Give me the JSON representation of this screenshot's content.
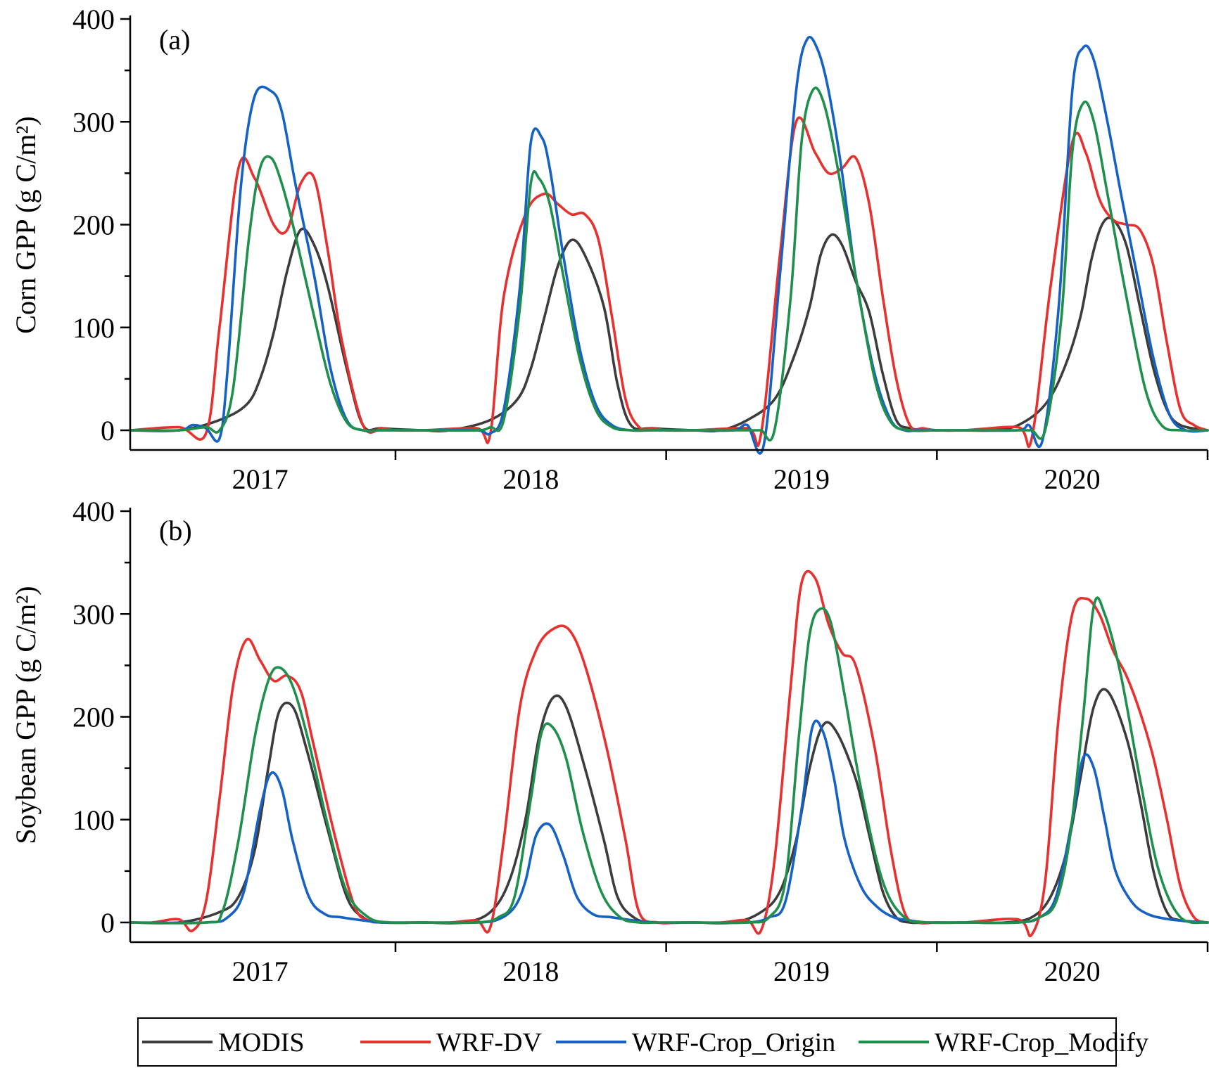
{
  "chart_data": [
    {
      "type": "line",
      "panel_label": "(a)",
      "ylabel": "Corn GPP (g C/m²)",
      "ylim": [
        0,
        400
      ],
      "yticks": [
        0,
        100,
        200,
        300,
        400
      ],
      "xlim": [
        2016.52,
        2020.5
      ],
      "year_labels": [
        "2017",
        "2018",
        "2019",
        "2020"
      ],
      "series": [
        {
          "name": "MODIS",
          "color": "#3c3c3c",
          "x": [
            2016.52,
            2016.7,
            2016.85,
            2016.95,
            2017.0,
            2017.05,
            2017.1,
            2017.15,
            2017.2,
            2017.25,
            2017.32,
            2017.38,
            2017.45,
            2017.6,
            2017.7,
            2017.85,
            2017.95,
            2018.0,
            2018.05,
            2018.1,
            2018.15,
            2018.2,
            2018.27,
            2018.32,
            2018.37,
            2018.45,
            2018.6,
            2018.7,
            2018.8,
            2018.9,
            2018.97,
            2019.03,
            2019.07,
            2019.11,
            2019.15,
            2019.2,
            2019.25,
            2019.3,
            2019.35,
            2019.4,
            2019.47,
            2019.6,
            2019.7,
            2019.8,
            2019.9,
            2019.97,
            2020.03,
            2020.07,
            2020.11,
            2020.15,
            2020.2,
            2020.25,
            2020.3,
            2020.35,
            2020.4,
            2020.5
          ],
          "values": [
            0,
            0,
            10,
            25,
            50,
            95,
            155,
            195,
            180,
            140,
            60,
            5,
            2,
            0,
            0,
            10,
            30,
            60,
            110,
            160,
            185,
            170,
            120,
            45,
            5,
            2,
            0,
            0,
            10,
            30,
            70,
            120,
            170,
            190,
            180,
            145,
            115,
            55,
            10,
            2,
            0,
            0,
            0,
            5,
            25,
            60,
            110,
            165,
            200,
            205,
            180,
            120,
            60,
            20,
            5,
            0
          ]
        },
        {
          "name": "WRF-DV",
          "color": "#e8302f",
          "x": [
            2016.52,
            2016.7,
            2016.8,
            2016.85,
            2016.92,
            2016.98,
            2017.05,
            2017.1,
            2017.15,
            2017.2,
            2017.25,
            2017.3,
            2017.38,
            2017.45,
            2017.5,
            2017.6,
            2017.8,
            2017.85,
            2017.9,
            2017.98,
            2018.05,
            2018.1,
            2018.15,
            2018.2,
            2018.25,
            2018.3,
            2018.35,
            2018.4,
            2018.45,
            2018.5,
            2018.6,
            2018.8,
            2018.85,
            2018.92,
            2018.98,
            2019.05,
            2019.1,
            2019.15,
            2019.2,
            2019.25,
            2019.3,
            2019.35,
            2019.4,
            2019.45,
            2019.5,
            2019.6,
            2019.8,
            2019.85,
            2019.92,
            2020.0,
            2020.05,
            2020.1,
            2020.15,
            2020.2,
            2020.25,
            2020.3,
            2020.35,
            2020.4,
            2020.45,
            2020.5
          ],
          "values": [
            0,
            3,
            -3,
            100,
            255,
            245,
            200,
            195,
            240,
            245,
            175,
            90,
            5,
            2,
            0,
            0,
            2,
            -4,
            130,
            210,
            230,
            220,
            210,
            210,
            185,
            110,
            30,
            3,
            2,
            0,
            0,
            2,
            -4,
            170,
            300,
            270,
            250,
            255,
            265,
            220,
            130,
            50,
            5,
            2,
            0,
            0,
            3,
            -8,
            140,
            280,
            270,
            225,
            205,
            200,
            195,
            160,
            85,
            20,
            5,
            0
          ]
        },
        {
          "name": "WRF-Crop_Origin",
          "color": "#1662c4",
          "x": [
            2016.52,
            2016.7,
            2016.75,
            2016.8,
            2016.85,
            2016.88,
            2016.93,
            2016.98,
            2017.04,
            2017.08,
            2017.13,
            2017.2,
            2017.26,
            2017.32,
            2017.38,
            2017.45,
            2017.6,
            2017.8,
            2017.85,
            2017.9,
            2017.96,
            2018.0,
            2018.04,
            2018.07,
            2018.12,
            2018.18,
            2018.24,
            2018.3,
            2018.37,
            2018.45,
            2018.6,
            2018.75,
            2018.8,
            2018.86,
            2018.92,
            2018.98,
            2019.02,
            2019.06,
            2019.1,
            2019.15,
            2019.2,
            2019.27,
            2019.33,
            2019.38,
            2019.43,
            2019.5,
            2019.6,
            2019.8,
            2019.84,
            2019.89,
            2019.95,
            2020.0,
            2020.04,
            2020.08,
            2020.13,
            2020.18,
            2020.24,
            2020.3,
            2020.36,
            2020.42,
            2020.5
          ],
          "values": [
            0,
            0,
            5,
            2,
            -8,
            60,
            240,
            325,
            330,
            310,
            240,
            150,
            60,
            10,
            0,
            0,
            0,
            0,
            -3,
            20,
            140,
            280,
            285,
            255,
            170,
            80,
            25,
            5,
            0,
            0,
            0,
            0,
            5,
            -15,
            150,
            330,
            380,
            370,
            330,
            250,
            150,
            55,
            10,
            0,
            0,
            0,
            0,
            0,
            5,
            -10,
            120,
            330,
            372,
            360,
            300,
            230,
            150,
            70,
            15,
            0,
            0
          ]
        },
        {
          "name": "WRF-Crop_Modify",
          "color": "#1f8f4c",
          "x": [
            2016.52,
            2016.7,
            2016.8,
            2016.85,
            2016.9,
            2016.96,
            2017.0,
            2017.04,
            2017.08,
            2017.13,
            2017.2,
            2017.26,
            2017.32,
            2017.38,
            2017.45,
            2017.6,
            2017.8,
            2017.85,
            2017.9,
            2017.96,
            2018.0,
            2018.03,
            2018.07,
            2018.12,
            2018.18,
            2018.24,
            2018.3,
            2018.37,
            2018.45,
            2018.6,
            2018.8,
            2018.85,
            2018.9,
            2018.96,
            2019.0,
            2019.04,
            2019.08,
            2019.13,
            2019.2,
            2019.27,
            2019.33,
            2019.4,
            2019.5,
            2019.6,
            2019.8,
            2019.85,
            2019.9,
            2019.96,
            2020.0,
            2020.04,
            2020.08,
            2020.13,
            2020.2,
            2020.27,
            2020.33,
            2020.4,
            2020.5
          ],
          "values": [
            0,
            0,
            3,
            0,
            40,
            190,
            255,
            265,
            240,
            190,
            110,
            45,
            8,
            0,
            0,
            0,
            0,
            3,
            10,
            120,
            240,
            245,
            220,
            150,
            70,
            20,
            3,
            0,
            0,
            0,
            0,
            0,
            0,
            130,
            280,
            330,
            320,
            260,
            150,
            50,
            8,
            0,
            0,
            0,
            0,
            0,
            0,
            110,
            270,
            318,
            300,
            230,
            130,
            40,
            5,
            0,
            0
          ]
        }
      ]
    },
    {
      "type": "line",
      "panel_label": "(b)",
      "ylabel": "Soybean GPP (g C/m²)",
      "ylim": [
        0,
        400
      ],
      "yticks": [
        0,
        100,
        200,
        300,
        400
      ],
      "xlim": [
        2016.52,
        2020.5
      ],
      "year_labels": [
        "2017",
        "2018",
        "2019",
        "2020"
      ],
      "series": [
        {
          "name": "MODIS",
          "color": "#3c3c3c",
          "x": [
            2016.52,
            2016.7,
            2016.85,
            2016.92,
            2016.98,
            2017.03,
            2017.07,
            2017.12,
            2017.17,
            2017.25,
            2017.32,
            2017.38,
            2017.45,
            2017.6,
            2017.75,
            2017.85,
            2017.92,
            2017.98,
            2018.03,
            2018.08,
            2018.13,
            2018.2,
            2018.27,
            2018.32,
            2018.38,
            2018.45,
            2018.6,
            2018.75,
            2018.85,
            2018.92,
            2018.98,
            2019.03,
            2019.08,
            2019.13,
            2019.2,
            2019.25,
            2019.3,
            2019.35,
            2019.4,
            2019.47,
            2019.6,
            2019.75,
            2019.85,
            2019.92,
            2019.98,
            2020.03,
            2020.08,
            2020.13,
            2020.2,
            2020.25,
            2020.3,
            2020.35,
            2020.4,
            2020.5
          ],
          "values": [
            0,
            0,
            10,
            25,
            70,
            150,
            205,
            210,
            170,
            90,
            25,
            5,
            0,
            0,
            0,
            10,
            40,
            100,
            180,
            218,
            210,
            150,
            80,
            25,
            5,
            0,
            0,
            0,
            10,
            30,
            80,
            150,
            192,
            185,
            140,
            85,
            30,
            5,
            0,
            0,
            0,
            0,
            5,
            25,
            70,
            140,
            210,
            225,
            180,
            120,
            50,
            10,
            2,
            0
          ]
        },
        {
          "name": "WRF-DV",
          "color": "#e8302f",
          "x": [
            2016.52,
            2016.6,
            2016.7,
            2016.75,
            2016.8,
            2016.85,
            2016.9,
            2016.95,
            2017.0,
            2017.05,
            2017.1,
            2017.15,
            2017.2,
            2017.28,
            2017.35,
            2017.4,
            2017.45,
            2017.55,
            2017.7,
            2017.8,
            2017.85,
            2017.9,
            2017.96,
            2018.02,
            2018.08,
            2018.14,
            2018.2,
            2018.28,
            2018.35,
            2018.4,
            2018.47,
            2018.55,
            2018.7,
            2018.8,
            2018.85,
            2018.9,
            2018.96,
            2019.0,
            2019.05,
            2019.1,
            2019.15,
            2019.2,
            2019.27,
            2019.33,
            2019.38,
            2019.43,
            2019.5,
            2019.6,
            2019.8,
            2019.85,
            2019.9,
            2019.95,
            2020.0,
            2020.05,
            2020.1,
            2020.15,
            2020.2,
            2020.25,
            2020.3,
            2020.35,
            2020.4,
            2020.45,
            2020.5
          ],
          "values": [
            0,
            0,
            3,
            -8,
            20,
            120,
            230,
            275,
            255,
            235,
            240,
            225,
            170,
            80,
            15,
            2,
            0,
            0,
            0,
            2,
            -5,
            80,
            210,
            265,
            285,
            285,
            250,
            170,
            80,
            10,
            0,
            0,
            0,
            2,
            -8,
            60,
            230,
            330,
            335,
            290,
            262,
            250,
            170,
            70,
            10,
            0,
            0,
            0,
            3,
            -12,
            40,
            200,
            300,
            315,
            300,
            265,
            240,
            205,
            160,
            100,
            35,
            5,
            0
          ]
        },
        {
          "name": "WRF-Crop_Origin",
          "color": "#1662c4",
          "x": [
            2016.52,
            2016.8,
            2016.88,
            2016.94,
            2017.0,
            2017.04,
            2017.08,
            2017.12,
            2017.18,
            2017.24,
            2017.3,
            2017.38,
            2017.45,
            2017.6,
            2017.8,
            2017.88,
            2017.94,
            2017.98,
            2018.02,
            2018.07,
            2018.12,
            2018.17,
            2018.23,
            2018.3,
            2018.38,
            2018.45,
            2018.6,
            2018.8,
            2018.88,
            2018.94,
            2019.0,
            2019.04,
            2019.08,
            2019.12,
            2019.16,
            2019.22,
            2019.28,
            2019.34,
            2019.4,
            2019.47,
            2019.6,
            2019.8,
            2019.88,
            2019.94,
            2020.0,
            2020.04,
            2020.08,
            2020.12,
            2020.16,
            2020.22,
            2020.28,
            2020.36,
            2020.44,
            2020.5
          ],
          "values": [
            0,
            0,
            5,
            30,
            110,
            145,
            130,
            80,
            25,
            8,
            5,
            2,
            0,
            0,
            0,
            3,
            15,
            40,
            85,
            95,
            65,
            25,
            8,
            5,
            2,
            0,
            0,
            0,
            5,
            20,
            110,
            190,
            185,
            140,
            80,
            35,
            15,
            5,
            2,
            0,
            0,
            0,
            5,
            25,
            100,
            160,
            150,
            100,
            50,
            20,
            8,
            3,
            1,
            0
          ]
        },
        {
          "name": "WRF-Crop_Modify",
          "color": "#1f8f4c",
          "x": [
            2016.52,
            2016.8,
            2016.86,
            2016.92,
            2016.98,
            2017.03,
            2017.07,
            2017.12,
            2017.18,
            2017.25,
            2017.32,
            2017.4,
            2017.48,
            2017.6,
            2017.8,
            2017.88,
            2017.94,
            2018.0,
            2018.04,
            2018.08,
            2018.13,
            2018.19,
            2018.26,
            2018.33,
            2018.4,
            2018.48,
            2018.6,
            2018.8,
            2018.88,
            2018.94,
            2018.99,
            2019.03,
            2019.07,
            2019.11,
            2019.16,
            2019.22,
            2019.3,
            2019.38,
            2019.47,
            2019.6,
            2019.8,
            2019.88,
            2019.94,
            2019.99,
            2020.04,
            2020.08,
            2020.12,
            2020.18,
            2020.25,
            2020.32,
            2020.4,
            2020.5
          ],
          "values": [
            0,
            0,
            10,
            80,
            180,
            235,
            248,
            230,
            175,
            95,
            30,
            5,
            0,
            0,
            0,
            5,
            25,
            120,
            185,
            190,
            160,
            90,
            30,
            5,
            0,
            0,
            0,
            0,
            5,
            40,
            180,
            280,
            305,
            290,
            220,
            130,
            40,
            5,
            0,
            0,
            0,
            5,
            20,
            80,
            200,
            308,
            300,
            240,
            140,
            50,
            5,
            0
          ]
        }
      ]
    }
  ],
  "legend": {
    "items": [
      {
        "label": "MODIS",
        "color": "#3c3c3c"
      },
      {
        "label": "WRF-DV",
        "color": "#e8302f"
      },
      {
        "label": "WRF-Crop_Origin",
        "color": "#1662c4"
      },
      {
        "label": "WRF-Crop_Modify",
        "color": "#1f8f4c"
      }
    ]
  }
}
